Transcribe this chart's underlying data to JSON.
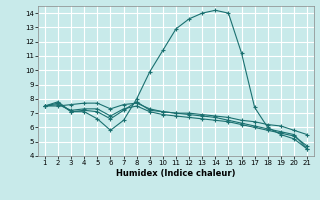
{
  "title": "",
  "xlabel": "Humidex (Indice chaleur)",
  "ylabel": "",
  "bg_color": "#c8eaea",
  "grid_color": "#ffffff",
  "line_color": "#1a7070",
  "xlim_min": 0.5,
  "xlim_max": 21.5,
  "ylim_min": 4.0,
  "ylim_max": 14.5,
  "xticks": [
    1,
    2,
    3,
    4,
    5,
    6,
    7,
    8,
    9,
    10,
    11,
    12,
    13,
    14,
    15,
    16,
    17,
    18,
    19,
    20,
    21
  ],
  "yticks": [
    4,
    5,
    6,
    7,
    8,
    9,
    10,
    11,
    12,
    13,
    14
  ],
  "series": [
    {
      "x": [
        1,
        2,
        3,
        4,
        5,
        6,
        7,
        8,
        9,
        10,
        11,
        12,
        13,
        14,
        15,
        16,
        17,
        18,
        19,
        20,
        21
      ],
      "y": [
        7.5,
        7.8,
        7.1,
        7.1,
        6.6,
        5.8,
        6.5,
        8.0,
        9.9,
        11.4,
        12.9,
        13.6,
        14.0,
        14.2,
        14.0,
        11.2,
        7.4,
        6.0,
        5.5,
        5.2,
        4.5
      ]
    },
    {
      "x": [
        1,
        2,
        3,
        4,
        5,
        6,
        7,
        8,
        9,
        10,
        11,
        12,
        13,
        14,
        15,
        16,
        17,
        18,
        19,
        20,
        21
      ],
      "y": [
        7.5,
        7.7,
        7.1,
        7.2,
        7.1,
        6.6,
        7.2,
        7.8,
        7.2,
        7.1,
        7.0,
        7.0,
        6.9,
        6.8,
        6.7,
        6.5,
        6.4,
        6.2,
        6.1,
        5.8,
        5.5
      ]
    },
    {
      "x": [
        1,
        2,
        3,
        4,
        5,
        6,
        7,
        8,
        9,
        10,
        11,
        12,
        13,
        14,
        15,
        16,
        17,
        18,
        19,
        20,
        21
      ],
      "y": [
        7.5,
        7.6,
        7.2,
        7.3,
        7.3,
        6.8,
        7.3,
        7.5,
        7.1,
        6.9,
        6.8,
        6.7,
        6.6,
        6.5,
        6.4,
        6.2,
        6.0,
        5.8,
        5.6,
        5.4,
        4.7
      ]
    },
    {
      "x": [
        1,
        2,
        3,
        4,
        5,
        6,
        7,
        8,
        9,
        10,
        11,
        12,
        13,
        14,
        15,
        16,
        17,
        18,
        19,
        20,
        21
      ],
      "y": [
        7.5,
        7.5,
        7.6,
        7.7,
        7.7,
        7.3,
        7.6,
        7.7,
        7.3,
        7.1,
        7.0,
        6.9,
        6.8,
        6.7,
        6.5,
        6.3,
        6.1,
        5.9,
        5.7,
        5.5,
        4.5
      ]
    }
  ]
}
